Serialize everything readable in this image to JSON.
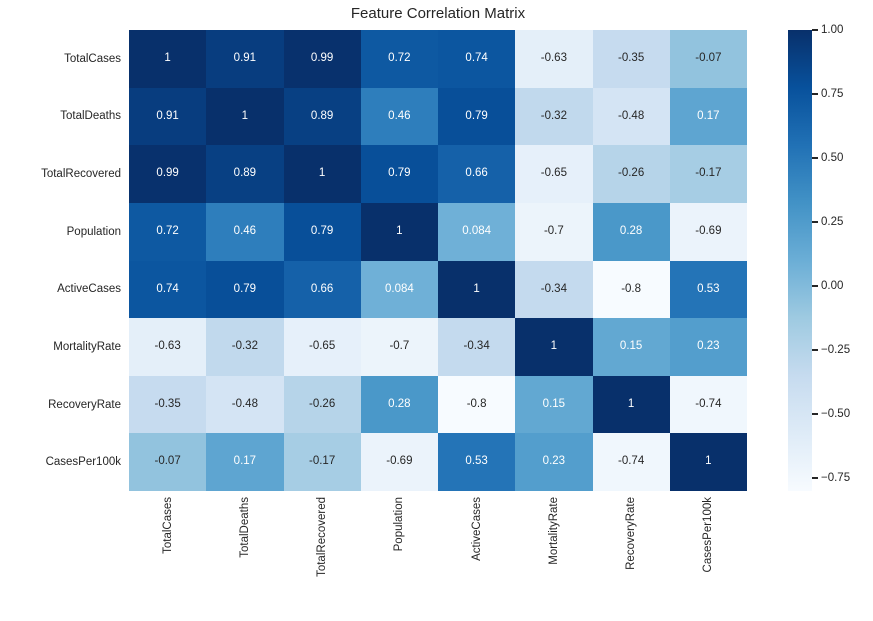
{
  "title": "Feature Correlation Matrix",
  "chart_data": {
    "type": "heatmap",
    "title": "Feature Correlation Matrix",
    "categories": [
      "TotalCases",
      "TotalDeaths",
      "TotalRecovered",
      "Population",
      "ActiveCases",
      "MortalityRate",
      "RecoveryRate",
      "CasesPer100k"
    ],
    "matrix": [
      [
        1,
        0.91,
        0.99,
        0.72,
        0.74,
        -0.63,
        -0.35,
        -0.07
      ],
      [
        0.91,
        1,
        0.89,
        0.46,
        0.79,
        -0.32,
        -0.48,
        0.17
      ],
      [
        0.99,
        0.89,
        1,
        0.79,
        0.66,
        -0.65,
        -0.26,
        -0.17
      ],
      [
        0.72,
        0.46,
        0.79,
        1,
        0.084,
        -0.7,
        0.28,
        -0.69
      ],
      [
        0.74,
        0.79,
        0.66,
        0.084,
        1,
        -0.34,
        -0.8,
        0.53
      ],
      [
        -0.63,
        -0.32,
        -0.65,
        -0.7,
        -0.34,
        1,
        0.15,
        0.23
      ],
      [
        -0.35,
        -0.48,
        -0.26,
        0.28,
        -0.8,
        0.15,
        1,
        -0.74
      ],
      [
        -0.07,
        0.17,
        -0.17,
        -0.69,
        0.53,
        0.23,
        -0.74,
        1
      ]
    ],
    "vmin": -0.8,
    "vmax": 1.0,
    "colormap": "Blues",
    "colormap_anchors": [
      "#f7fbff",
      "#deebf7",
      "#c6dbef",
      "#9ecae1",
      "#6baed6",
      "#4292c6",
      "#2171b5",
      "#08519c",
      "#08306b"
    ],
    "colorbar_ticks": [
      {
        "value": 1.0,
        "label": "1.00"
      },
      {
        "value": 0.75,
        "label": "0.75"
      },
      {
        "value": 0.5,
        "label": "0.50"
      },
      {
        "value": 0.25,
        "label": "0.25"
      },
      {
        "value": 0.0,
        "label": "0.00"
      },
      {
        "value": -0.25,
        "label": "−0.25"
      },
      {
        "value": -0.5,
        "label": "−0.50"
      },
      {
        "value": -0.75,
        "label": "−0.75"
      }
    ],
    "annotation_colors": {
      "light": "#ffffff",
      "dark": "#262626"
    },
    "legend_position": "right",
    "grid": false
  }
}
